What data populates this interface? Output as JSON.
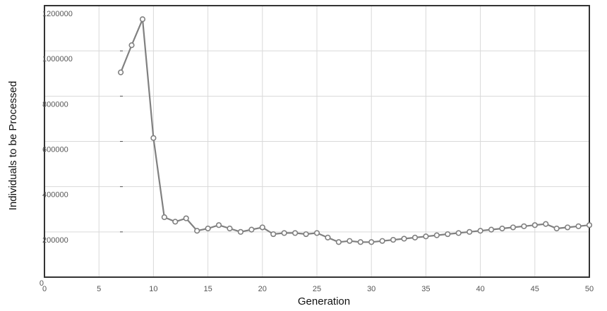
{
  "chart_data": {
    "type": "line",
    "title": "",
    "xlabel": "Generation",
    "ylabel": "Individuals to be Processed",
    "xlim": [
      0,
      50
    ],
    "ylim": [
      0,
      1200000
    ],
    "x_ticks": [
      0,
      5,
      10,
      15,
      20,
      25,
      30,
      35,
      40,
      45,
      50
    ],
    "y_ticks": [
      0,
      200000,
      400000,
      600000,
      800000,
      1000000,
      1200000
    ],
    "grid": true,
    "legend": "none",
    "series": [
      {
        "color": "#808080",
        "marker": "hollow-circle",
        "x": [
          7,
          8,
          9,
          10,
          11,
          12,
          13,
          14,
          15,
          16,
          17,
          18,
          19,
          20,
          21,
          22,
          23,
          24,
          25,
          26,
          27,
          28,
          29,
          30,
          31,
          32,
          33,
          34,
          35,
          36,
          37,
          38,
          39,
          40,
          41,
          42,
          43,
          44,
          45,
          46,
          47,
          48,
          49,
          50
        ],
        "values": [
          905000,
          1025000,
          1140000,
          615000,
          265000,
          245000,
          260000,
          205000,
          215000,
          230000,
          215000,
          200000,
          210000,
          220000,
          190000,
          195000,
          195000,
          190000,
          195000,
          175000,
          155000,
          160000,
          155000,
          155000,
          160000,
          165000,
          170000,
          175000,
          180000,
          185000,
          190000,
          195000,
          200000,
          205000,
          210000,
          215000,
          220000,
          225000,
          230000,
          235000,
          215000,
          220000,
          225000,
          230000
        ]
      }
    ]
  }
}
